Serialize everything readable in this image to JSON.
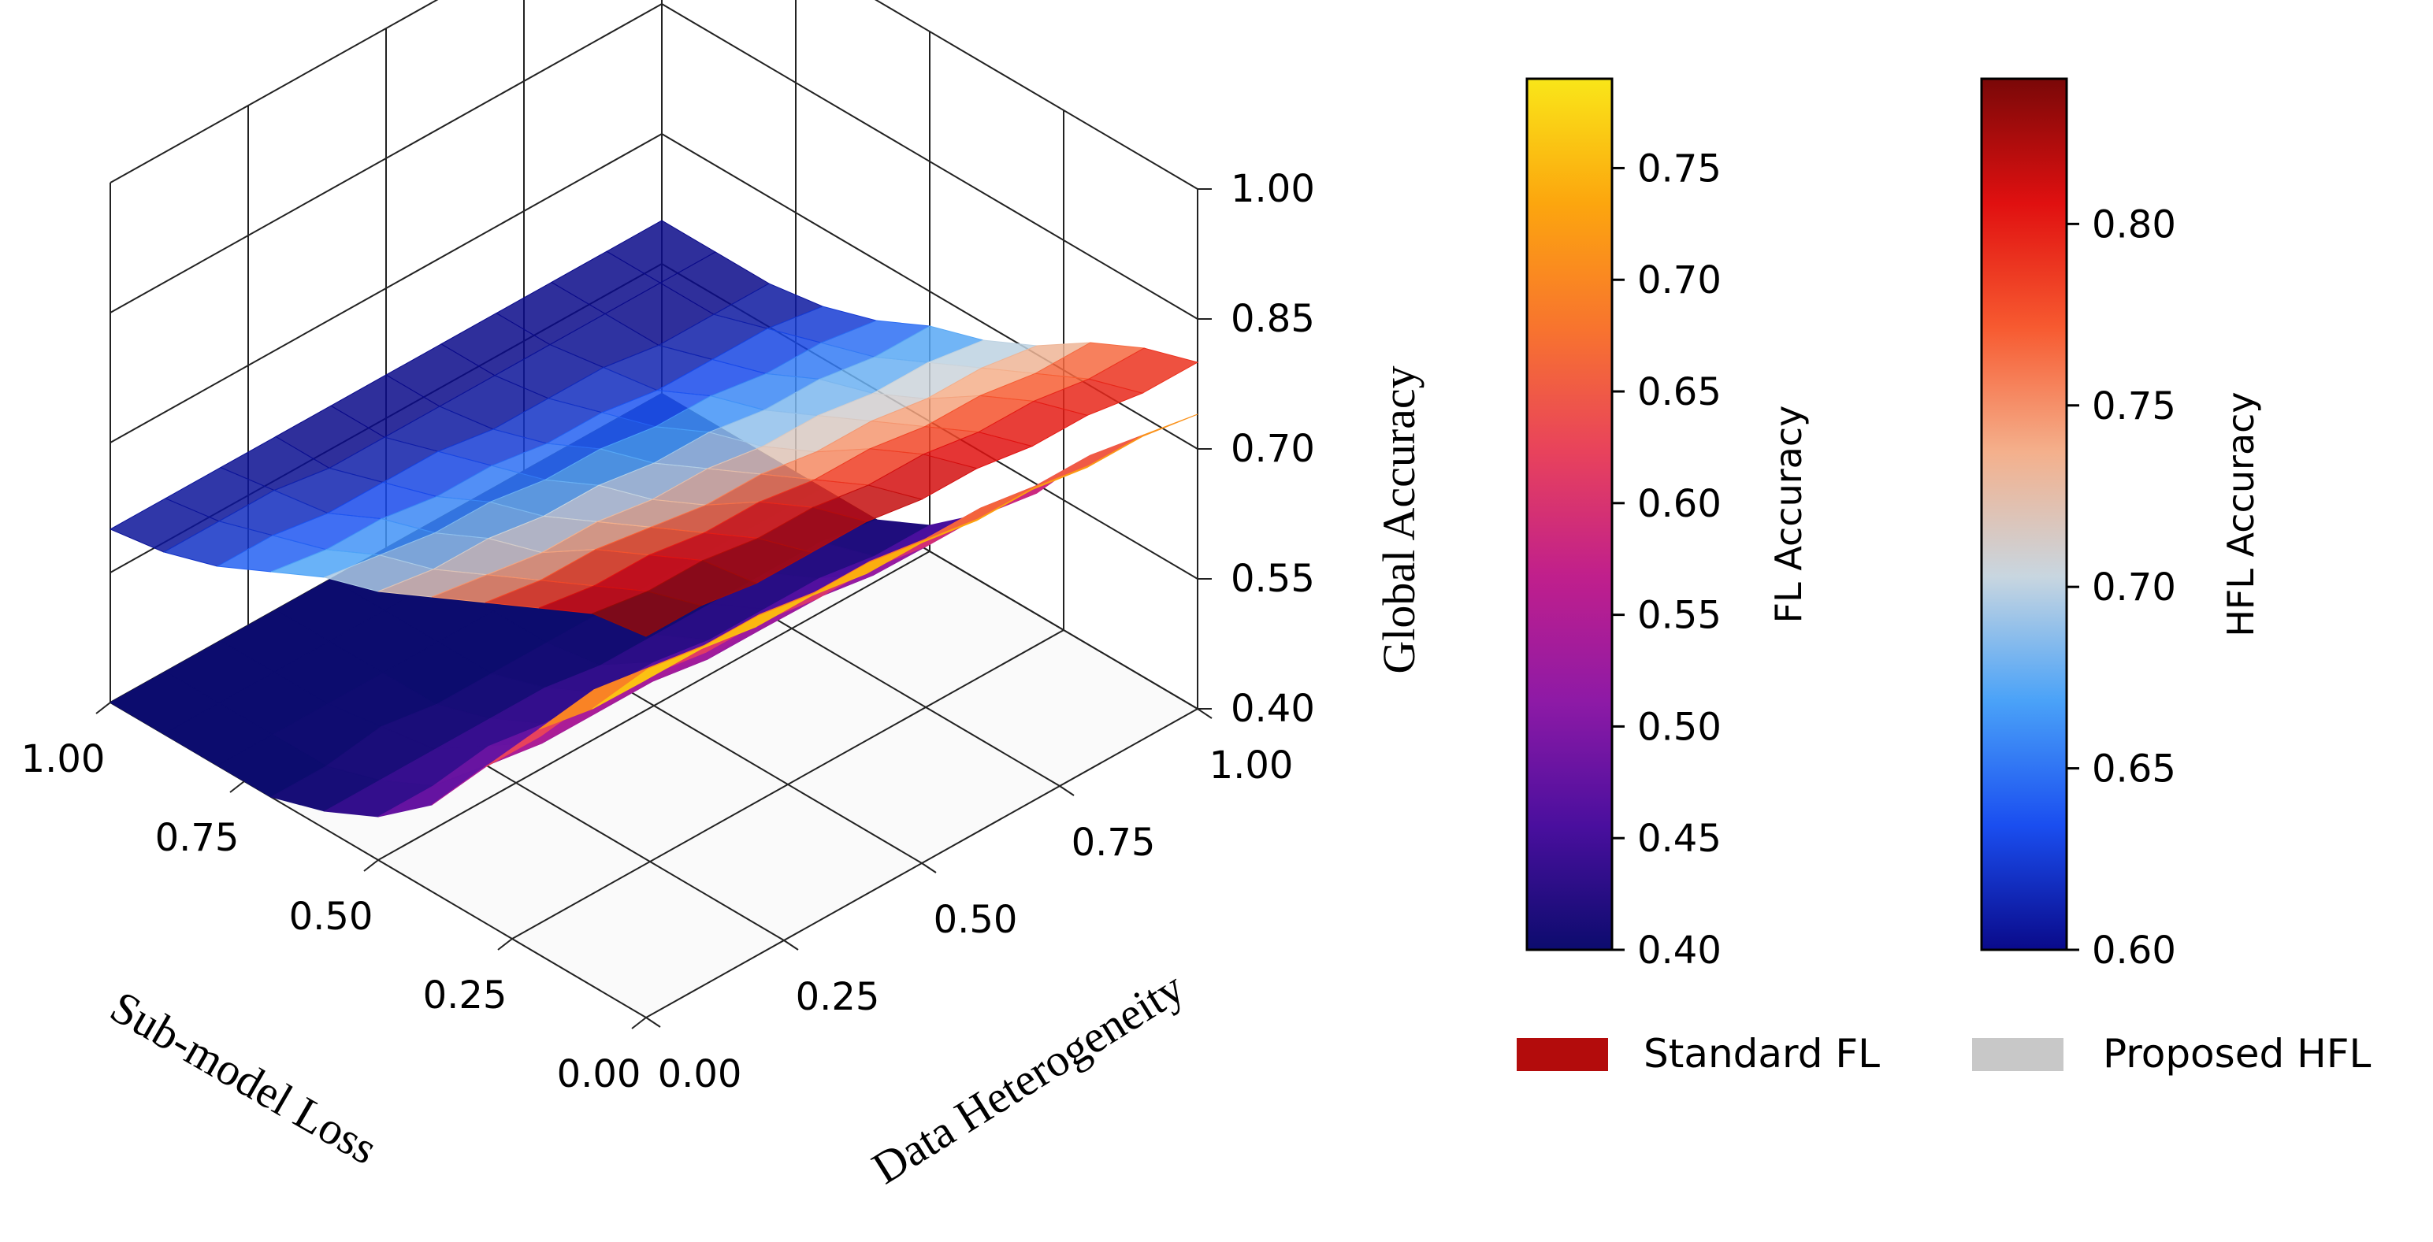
{
  "chart_data": {
    "type": "surface3d",
    "title": "",
    "x_axis": {
      "label": "Sub-model Loss",
      "range": [
        0,
        1
      ],
      "ticks": [
        "0.00",
        "0.25",
        "0.50",
        "0.75",
        "1.00"
      ]
    },
    "y_axis": {
      "label": "Data Heterogeneity",
      "range": [
        0,
        1
      ],
      "ticks": [
        "0.00",
        "0.25",
        "0.50",
        "0.75",
        "1.00"
      ]
    },
    "z_axis": {
      "label": "Global Accuracy",
      "range": [
        0.4,
        1.0
      ],
      "ticks": [
        "0.40",
        "0.55",
        "0.70",
        "0.85",
        "1.00"
      ]
    },
    "grid": true,
    "x": [
      0.0,
      0.1,
      0.2,
      0.3,
      0.4,
      0.5,
      0.6,
      0.7,
      0.8,
      0.9,
      1.0
    ],
    "y": [
      0.0,
      0.1,
      0.2,
      0.3,
      0.4,
      0.5,
      0.6,
      0.7,
      0.8,
      0.9,
      1.0
    ],
    "series": [
      {
        "name": "Standard FL",
        "legend_color": "#b30c0c",
        "colormap": "plasma",
        "surface_note": "rows = data heterogeneity (0 to 1), columns = sub-model loss (0 to 1)",
        "z": [
          [
            0.79,
            0.72,
            0.66,
            0.58,
            0.5,
            0.45,
            0.42,
            0.4,
            0.4,
            0.4,
            0.4
          ],
          [
            0.79,
            0.73,
            0.67,
            0.58,
            0.51,
            0.45,
            0.42,
            0.4,
            0.4,
            0.4,
            0.4
          ],
          [
            0.78,
            0.72,
            0.66,
            0.59,
            0.5,
            0.46,
            0.42,
            0.41,
            0.4,
            0.4,
            0.4
          ],
          [
            0.78,
            0.72,
            0.65,
            0.58,
            0.5,
            0.45,
            0.42,
            0.4,
            0.4,
            0.4,
            0.4
          ],
          [
            0.77,
            0.71,
            0.65,
            0.57,
            0.5,
            0.45,
            0.42,
            0.4,
            0.4,
            0.4,
            0.4
          ],
          [
            0.77,
            0.71,
            0.64,
            0.57,
            0.49,
            0.45,
            0.41,
            0.4,
            0.4,
            0.4,
            0.4
          ],
          [
            0.76,
            0.7,
            0.64,
            0.56,
            0.49,
            0.44,
            0.41,
            0.4,
            0.4,
            0.4,
            0.4
          ],
          [
            0.76,
            0.69,
            0.63,
            0.56,
            0.49,
            0.44,
            0.41,
            0.4,
            0.4,
            0.4,
            0.4
          ],
          [
            0.75,
            0.69,
            0.63,
            0.55,
            0.48,
            0.44,
            0.41,
            0.4,
            0.4,
            0.4,
            0.4
          ],
          [
            0.75,
            0.68,
            0.62,
            0.55,
            0.48,
            0.43,
            0.41,
            0.4,
            0.4,
            0.4,
            0.4
          ],
          [
            0.74,
            0.68,
            0.62,
            0.54,
            0.48,
            0.43,
            0.4,
            0.4,
            0.4,
            0.4,
            0.4
          ]
        ]
      },
      {
        "name": "Proposed HFL",
        "legend_color": "#c8c8c8",
        "colormap": "coolwarm_inverse",
        "surface_note": "rows = data heterogeneity (0 to 1), columns = sub-model loss (0 to 1)",
        "z": [
          [
            0.84,
            0.83,
            0.8,
            0.77,
            0.74,
            0.71,
            0.69,
            0.66,
            0.63,
            0.61,
            0.6
          ],
          [
            0.84,
            0.82,
            0.79,
            0.76,
            0.73,
            0.7,
            0.68,
            0.65,
            0.63,
            0.61,
            0.6
          ],
          [
            0.83,
            0.82,
            0.79,
            0.76,
            0.72,
            0.7,
            0.67,
            0.65,
            0.62,
            0.61,
            0.6
          ],
          [
            0.83,
            0.81,
            0.78,
            0.75,
            0.72,
            0.69,
            0.67,
            0.64,
            0.62,
            0.6,
            0.6
          ],
          [
            0.83,
            0.81,
            0.78,
            0.74,
            0.71,
            0.69,
            0.66,
            0.64,
            0.62,
            0.6,
            0.6
          ],
          [
            0.82,
            0.8,
            0.77,
            0.74,
            0.71,
            0.68,
            0.66,
            0.63,
            0.61,
            0.6,
            0.6
          ],
          [
            0.82,
            0.8,
            0.77,
            0.73,
            0.7,
            0.68,
            0.65,
            0.63,
            0.61,
            0.6,
            0.6
          ],
          [
            0.81,
            0.79,
            0.76,
            0.73,
            0.7,
            0.67,
            0.65,
            0.62,
            0.61,
            0.6,
            0.6
          ],
          [
            0.81,
            0.79,
            0.76,
            0.72,
            0.69,
            0.67,
            0.64,
            0.62,
            0.6,
            0.6,
            0.6
          ],
          [
            0.8,
            0.78,
            0.75,
            0.72,
            0.69,
            0.66,
            0.64,
            0.62,
            0.6,
            0.6,
            0.6
          ],
          [
            0.8,
            0.78,
            0.75,
            0.71,
            0.68,
            0.66,
            0.63,
            0.61,
            0.6,
            0.6,
            0.6
          ]
        ]
      }
    ],
    "colorbars": [
      {
        "label": "FL Accuracy",
        "range": [
          0.4,
          0.79
        ],
        "ticks": [
          "0.40",
          "0.45",
          "0.50",
          "0.55",
          "0.60",
          "0.65",
          "0.70",
          "0.75"
        ],
        "colors": [
          "#0c0c6e",
          "#4a0f9e",
          "#8e1aa6",
          "#c01f8c",
          "#e8425c",
          "#f8742e",
          "#fca60e",
          "#f9e619"
        ]
      },
      {
        "label": "HFL Accuracy",
        "range": [
          0.6,
          0.84
        ],
        "ticks": [
          "0.60",
          "0.65",
          "0.70",
          "0.75",
          "0.80"
        ],
        "colors": [
          "#0a0a8a",
          "#1a4ef0",
          "#4aa2f8",
          "#c8d6e0",
          "#f4b08c",
          "#f75a30",
          "#e01010",
          "#7a0808"
        ]
      }
    ],
    "legend": {
      "position": "bottom-right",
      "items": [
        {
          "label": "Standard FL",
          "color": "#b30c0c"
        },
        {
          "label": "Proposed HFL",
          "color": "#c8c8c8"
        }
      ]
    }
  }
}
